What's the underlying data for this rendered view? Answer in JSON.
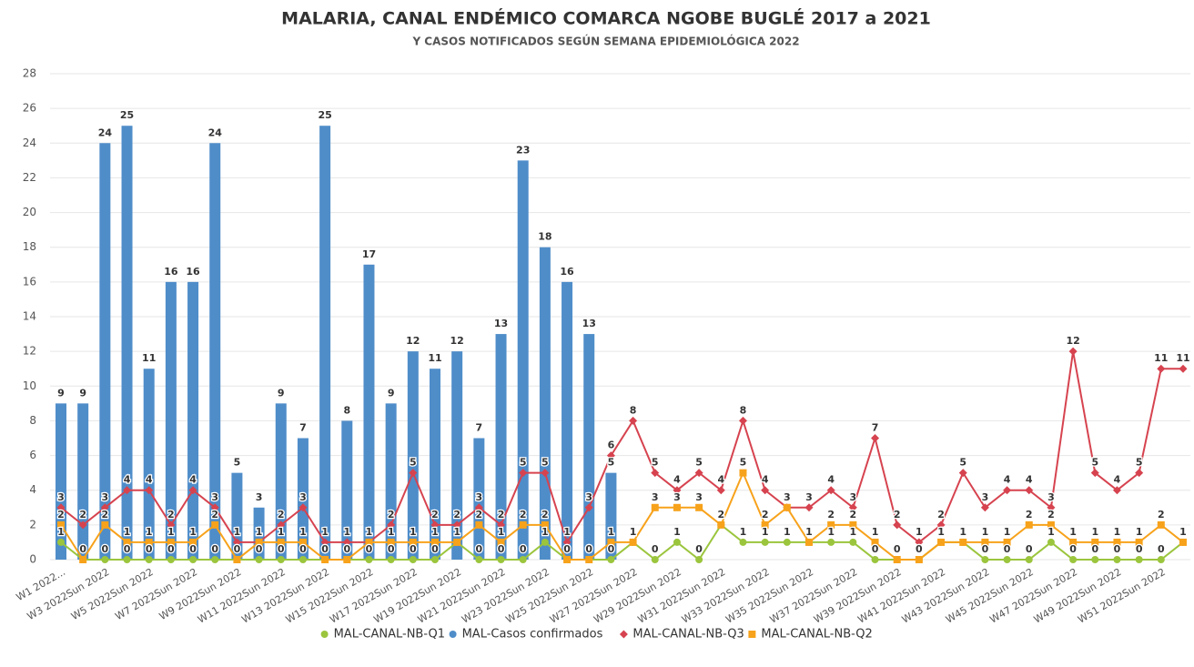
{
  "chart_data": {
    "type": "combo",
    "title": "MALARIA, CANAL ENDÉMICO COMARCA NGOBE BUGLÉ 2017 a 2021",
    "subtitle": "Y CASOS NOTIFICADOS SEGÚN SEMANA EPIDEMIOLÓGICA 2022",
    "categories": [
      "W1 2022...",
      null,
      "W3 2022Sun 2022",
      null,
      "W5 2022Sun 2022",
      null,
      "W7 2022Sun 2022",
      null,
      "W9 2022Sun 2022",
      null,
      "W11 2022Sun 2022",
      null,
      "W13 2022Sun 2022",
      null,
      "W15 2022Sun 2022",
      null,
      "W17 2022Sun 2022",
      null,
      "W19 2022Sun 2022",
      null,
      "W21 2022Sun 2022",
      null,
      "W23 2022Sun 2022",
      null,
      "W25 2022Sun 2022",
      null,
      "W27 2022Sun 2022",
      null,
      "W29 2022Sun 2022",
      null,
      "W31 2022Sun 2022",
      null,
      "W33 2022Sun 2022",
      null,
      "W35 2022Sun 2022",
      null,
      "W37 2022Sun 2022",
      null,
      "W39 2022Sun 2022",
      null,
      "W41 2022Sun 2022",
      null,
      "W43 2022Sun 2022",
      null,
      "W45 2022Sun 2022",
      null,
      "W47 2022Sun 2022",
      null,
      "W49 2022Sun 2022",
      null,
      "W51 2022Sun 2022",
      null
    ],
    "series": [
      {
        "name": "MAL-CANAL-NB-Q1",
        "type": "line",
        "marker": "circle",
        "color": "#9bc53d",
        "values": [
          1,
          0,
          0,
          0,
          0,
          0,
          0,
          0,
          0,
          0,
          0,
          0,
          0,
          0,
          0,
          0,
          0,
          0,
          1,
          0,
          0,
          0,
          1,
          0,
          0,
          0,
          1,
          0,
          1,
          0,
          2,
          1,
          1,
          1,
          1,
          1,
          1,
          0,
          0,
          0,
          1,
          1,
          0,
          0,
          0,
          1,
          0,
          0,
          0,
          0,
          0,
          1
        ]
      },
      {
        "name": "MAL-Casos confirmados",
        "type": "bar",
        "marker": "circle",
        "color": "#4f8dc9",
        "values": [
          9,
          9,
          24,
          25,
          11,
          16,
          16,
          24,
          5,
          3,
          9,
          7,
          25,
          8,
          17,
          9,
          12,
          11,
          12,
          7,
          13,
          23,
          18,
          16,
          13,
          5,
          null,
          null,
          null,
          null,
          null,
          null,
          null,
          null,
          null,
          null,
          null,
          null,
          null,
          null,
          null,
          null,
          null,
          null,
          null,
          null,
          null,
          null,
          null,
          null,
          null,
          null
        ]
      },
      {
        "name": "MAL-CANAL-NB-Q3",
        "type": "line",
        "marker": "diamond",
        "color": "#d6434f",
        "values": [
          3,
          2,
          3,
          4,
          4,
          2,
          4,
          3,
          1,
          1,
          2,
          3,
          1,
          1,
          1,
          2,
          5,
          2,
          2,
          3,
          2,
          5,
          5,
          1,
          3,
          6,
          8,
          5,
          4,
          5,
          4,
          8,
          4,
          3,
          3,
          4,
          3,
          7,
          2,
          1,
          2,
          5,
          3,
          4,
          4,
          3,
          12,
          5,
          4,
          5,
          11,
          11
        ]
      },
      {
        "name": "MAL-CANAL-NB-Q2",
        "type": "line",
        "marker": "square",
        "color": "#f7a21b",
        "values": [
          2,
          0,
          2,
          1,
          1,
          1,
          1,
          2,
          0,
          1,
          1,
          1,
          0,
          0,
          1,
          1,
          1,
          1,
          1,
          2,
          1,
          2,
          2,
          0,
          0,
          1,
          1,
          3,
          3,
          3,
          2,
          5,
          2,
          3,
          1,
          2,
          2,
          1,
          0,
          0,
          1,
          1,
          1,
          1,
          2,
          2,
          1,
          1,
          1,
          1,
          2,
          1
        ]
      }
    ],
    "ylim": [
      0,
      28
    ],
    "yticks": [
      0,
      2,
      4,
      6,
      8,
      10,
      12,
      14,
      16,
      18,
      20,
      22,
      24,
      26,
      28
    ],
    "grid": true,
    "legend": "bottom"
  }
}
